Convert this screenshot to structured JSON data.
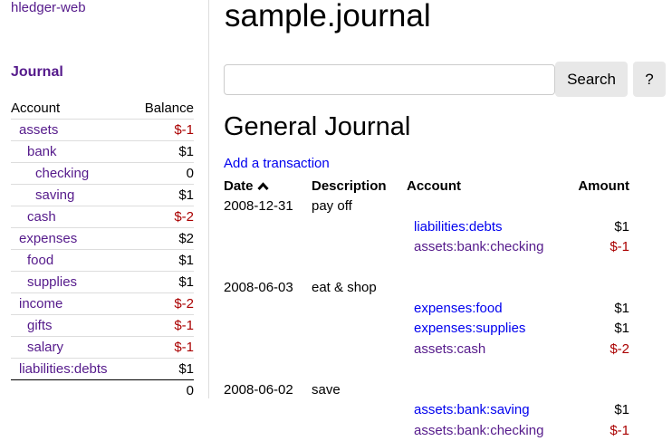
{
  "sidebar": {
    "brand": "hledger-web",
    "journal_link": "Journal",
    "headers": {
      "account": "Account",
      "balance": "Balance"
    },
    "accounts": [
      {
        "name": "assets",
        "balance": "$-1",
        "indent": 0,
        "neg": true
      },
      {
        "name": "bank",
        "balance": "$1",
        "indent": 1,
        "neg": false
      },
      {
        "name": "checking",
        "balance": "0",
        "indent": 2,
        "neg": false
      },
      {
        "name": "saving",
        "balance": "$1",
        "indent": 2,
        "neg": false
      },
      {
        "name": "cash",
        "balance": "$-2",
        "indent": 1,
        "neg": true
      },
      {
        "name": "expenses",
        "balance": "$2",
        "indent": 0,
        "neg": false
      },
      {
        "name": "food",
        "balance": "$1",
        "indent": 1,
        "neg": false
      },
      {
        "name": "supplies",
        "balance": "$1",
        "indent": 1,
        "neg": false
      },
      {
        "name": "income",
        "balance": "$-2",
        "indent": 0,
        "neg": true
      },
      {
        "name": "gifts",
        "balance": "$-1",
        "indent": 1,
        "neg": true
      },
      {
        "name": "salary",
        "balance": "$-1",
        "indent": 1,
        "neg": true
      },
      {
        "name": "liabilities:debts",
        "balance": "$1",
        "indent": 0,
        "neg": false
      }
    ],
    "total": "0"
  },
  "main": {
    "title": "sample.journal",
    "search": {
      "value": "",
      "placeholder": ""
    },
    "search_button": "Search",
    "help_button": "?",
    "heading": "General Journal",
    "add_link": "Add a transaction",
    "columns": {
      "date": "Date",
      "sort_icon": "chevron-up-icon",
      "description": "Description",
      "account": "Account",
      "amount": "Amount"
    },
    "transactions": [
      {
        "date": "2008-12-31",
        "description": "pay off",
        "postings": [
          {
            "account": "liabilities:debts",
            "amount": "$1",
            "visited": false
          },
          {
            "account": "assets:bank:checking",
            "amount": "$-1",
            "visited": true
          }
        ]
      },
      {
        "date": "2008-06-03",
        "description": "eat & shop",
        "postings": [
          {
            "account": "expenses:food",
            "amount": "$1",
            "visited": false
          },
          {
            "account": "expenses:supplies",
            "amount": "$1",
            "visited": false
          },
          {
            "account": "assets:cash",
            "amount": "$-2",
            "visited": true
          }
        ]
      },
      {
        "date": "2008-06-02",
        "description": "save",
        "postings": [
          {
            "account": "assets:bank:saving",
            "amount": "$1",
            "visited": false
          },
          {
            "account": "assets:bank:checking",
            "amount": "$-1",
            "visited": true
          }
        ]
      }
    ]
  },
  "colors": {
    "visited": "#551a8b",
    "link": "#0000ee",
    "negative": "#aa0000"
  }
}
